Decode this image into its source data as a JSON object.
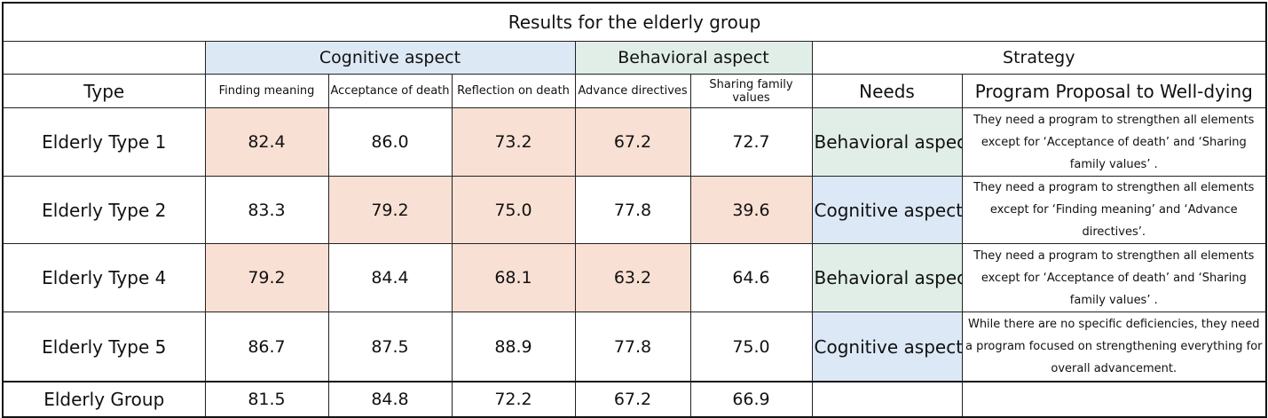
{
  "title": "Results for the elderly group",
  "groups": {
    "cognitive": "Cognitive aspect",
    "behavioral": "Behavioral aspect",
    "strategy": "Strategy"
  },
  "headers": {
    "type": "Type",
    "finding_meaning": "Finding meaning",
    "acceptance_of_death": "Acceptance of death",
    "reflection_on_death": "Reflection on death",
    "advance_directives": "Advance directives",
    "sharing_family_values": "Sharing family values",
    "needs": "Needs",
    "program_proposal": "Program Proposal to Well-dying"
  },
  "rows": [
    {
      "type": "Elderly Type 1",
      "values": [
        "82.4",
        "86.0",
        "73.2",
        "67.2",
        "72.7"
      ],
      "needs": "Behavioral aspect",
      "proposal": "They need a program to strengthen all elements except for ‘Acceptance of death’ and ‘Sharing family values’ ."
    },
    {
      "type": "Elderly Type 2",
      "values": [
        "83.3",
        "79.2",
        "75.0",
        "77.8",
        "39.6"
      ],
      "needs": "Cognitive aspect",
      "proposal": "They need a program to strengthen all elements except for ‘Finding meaning’ and ‘Advance directives’."
    },
    {
      "type": "Elderly Type 4",
      "values": [
        "79.2",
        "84.4",
        "68.1",
        "63.2",
        "64.6"
      ],
      "needs": "Behavioral aspect",
      "proposal": "They need a program to strengthen all elements except for ‘Acceptance of death’ and ‘Sharing family values’ ."
    },
    {
      "type": "Elderly Type 5",
      "values": [
        "86.7",
        "87.5",
        "88.9",
        "77.8",
        "75.0"
      ],
      "needs": "Cognitive aspect",
      "proposal": "While there are no specific deficiencies, they need a program focused on strengthening everything for overall advancement."
    }
  ],
  "total": {
    "type": "Elderly Group",
    "values": [
      "81.5",
      "84.8",
      "72.2",
      "67.2",
      "66.9"
    ]
  },
  "colors": {
    "highlight_low": "#f9e0d4",
    "cognitive_bg": "#dde8f5",
    "behavioral_bg": "#e1eee8"
  }
}
